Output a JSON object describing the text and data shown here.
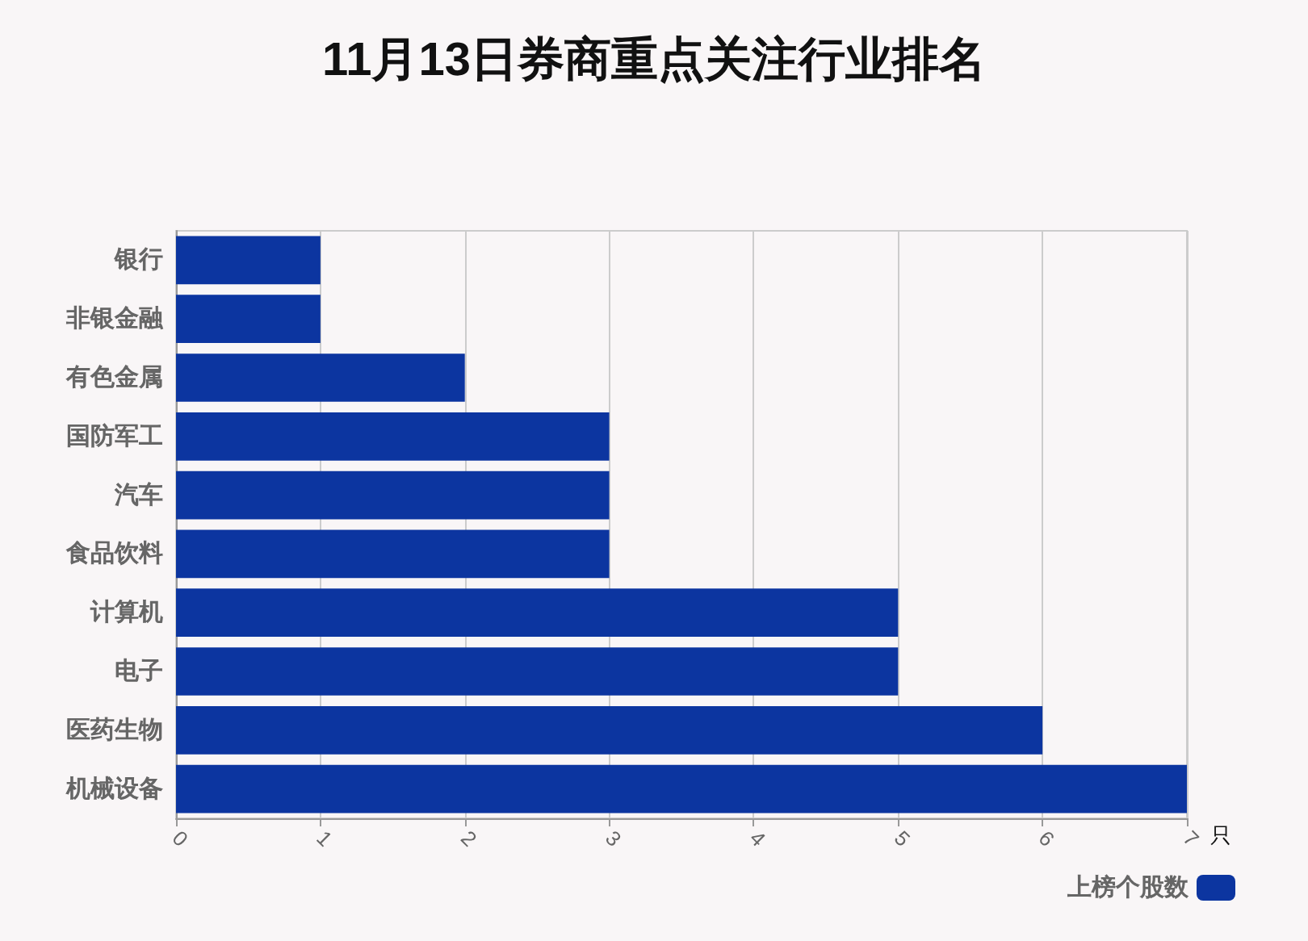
{
  "chart_data": {
    "type": "bar",
    "title": "11月13日券商重点关注行业排名",
    "orientation": "horizontal",
    "xlabel": "只",
    "categories": [
      "银行",
      "非银金融",
      "有色金属",
      "国防军工",
      "汽车",
      "食品饮料",
      "计算机",
      "电子",
      "医药生物",
      "机械设备"
    ],
    "series": [
      {
        "name": "上榜个股数",
        "color": "#0c35a0",
        "values": [
          1,
          1,
          2,
          3,
          3,
          3,
          5,
          5,
          6,
          7
        ]
      }
    ],
    "xlim": [
      0,
      7
    ],
    "xticks": [
      0,
      1,
      2,
      3,
      4,
      5,
      6,
      7
    ],
    "grid": "x",
    "legend": "bottom right"
  }
}
